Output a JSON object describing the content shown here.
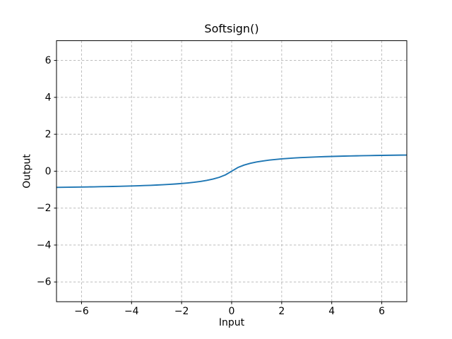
{
  "chart_data": {
    "type": "line",
    "title": "Softsign()",
    "xlabel": "Input",
    "ylabel": "Output",
    "xlim": [
      -7,
      7
    ],
    "ylim": [
      -7.07,
      7.07
    ],
    "xticks": [
      -6,
      -4,
      -2,
      0,
      2,
      4,
      6
    ],
    "yticks": [
      -6,
      -4,
      -2,
      0,
      2,
      4,
      6
    ],
    "grid": true,
    "grid_linestyle": "dashed",
    "legend_position": "none",
    "colors": {
      "line": "#1f77b4",
      "grid": "#b4b4b4",
      "spine": "#000000",
      "background": "#ffffff",
      "text": "#000000"
    },
    "series": [
      {
        "name": "softsign",
        "x": [
          -7,
          -6.75,
          -6.5,
          -6.25,
          -6,
          -5.75,
          -5.5,
          -5.25,
          -5,
          -4.75,
          -4.5,
          -4.25,
          -4,
          -3.75,
          -3.5,
          -3.25,
          -3,
          -2.75,
          -2.5,
          -2.25,
          -2,
          -1.75,
          -1.5,
          -1.25,
          -1,
          -0.75,
          -0.5,
          -0.25,
          0,
          0.25,
          0.5,
          0.75,
          1,
          1.25,
          1.5,
          1.75,
          2,
          2.25,
          2.5,
          2.75,
          3,
          3.25,
          3.5,
          3.75,
          4,
          4.25,
          4.5,
          4.75,
          5,
          5.25,
          5.5,
          5.75,
          6,
          6.25,
          6.5,
          6.75,
          7
        ],
        "y": [
          -0.875,
          -0.871,
          -0.8667,
          -0.8621,
          -0.8571,
          -0.8519,
          -0.8462,
          -0.84,
          -0.8333,
          -0.8261,
          -0.8182,
          -0.8095,
          -0.8,
          -0.7895,
          -0.7778,
          -0.7647,
          -0.75,
          -0.7333,
          -0.7143,
          -0.6923,
          -0.6667,
          -0.6364,
          -0.6,
          -0.5556,
          -0.5,
          -0.4286,
          -0.3333,
          -0.2,
          0,
          0.2,
          0.3333,
          0.4286,
          0.5,
          0.5556,
          0.6,
          0.6364,
          0.6667,
          0.6923,
          0.7143,
          0.7333,
          0.75,
          0.7647,
          0.7778,
          0.7895,
          0.8,
          0.8095,
          0.8182,
          0.8261,
          0.8333,
          0.84,
          0.8462,
          0.8519,
          0.8571,
          0.8621,
          0.8667,
          0.871,
          0.875
        ]
      }
    ]
  }
}
